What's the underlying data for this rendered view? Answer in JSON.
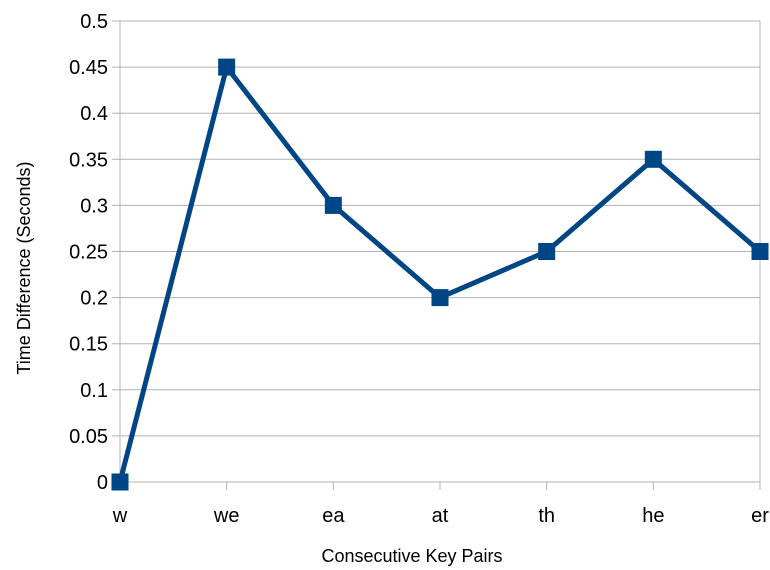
{
  "chart_data": {
    "type": "line",
    "categories": [
      "w",
      "we",
      "ea",
      "at",
      "th",
      "he",
      "er"
    ],
    "series": [
      {
        "values": [
          0,
          0.45,
          0.3,
          0.2,
          0.25,
          0.35,
          0.25
        ]
      }
    ],
    "xlabel": "Consecutive Key Pairs",
    "ylabel": "Time Difference (Seconds)",
    "ylim": [
      0,
      0.5
    ],
    "yticks": [
      "0",
      "0.05",
      "0.1",
      "0.15",
      "0.2",
      "0.25",
      "0.3",
      "0.35",
      "0.4",
      "0.45",
      "0.5"
    ],
    "grid": "horizontal",
    "legend": "none",
    "line_color": "#004586",
    "marker": "square"
  }
}
